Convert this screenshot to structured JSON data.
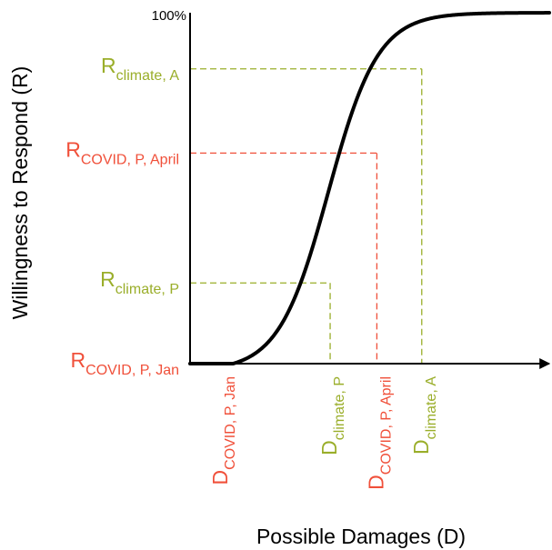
{
  "colors": {
    "axis": "#000000",
    "curve": "#000000",
    "climate": "#9aae2a",
    "covid": "#f0503a"
  },
  "chart_data": {
    "type": "line",
    "title": "",
    "xlabel": "Possible Damages (D)",
    "ylabel": "Willingness to Respond (R)",
    "y_max_label": "100%",
    "xlim": [
      0,
      10
    ],
    "ylim": [
      0,
      100
    ],
    "curve": {
      "shape": "logistic",
      "midpoint": 3.85,
      "steepness": 1.45,
      "baseline_until": 1.2
    },
    "markers": [
      {
        "key": "covid_jan",
        "group": "covid",
        "x": 0,
        "y": 0,
        "r_main": "R",
        "r_sub": "COVID, P, Jan",
        "d_main": "D",
        "d_sub": "COVID, P, Jan"
      },
      {
        "key": "climate_p",
        "group": "climate",
        "x": 3.9,
        "y": 23,
        "r_main": "R",
        "r_sub": "climate, P",
        "d_main": "D",
        "d_sub": "climate, P"
      },
      {
        "key": "covid_april",
        "group": "covid",
        "x": 5.2,
        "y": 60,
        "r_main": "R",
        "r_sub": "COVID, P, April",
        "d_main": "D",
        "d_sub": "COVID, P, April"
      },
      {
        "key": "climate_a",
        "group": "climate",
        "x": 6.45,
        "y": 84,
        "r_main": "R",
        "r_sub": "climate, A",
        "d_main": "D",
        "d_sub": "climate, A"
      }
    ]
  }
}
